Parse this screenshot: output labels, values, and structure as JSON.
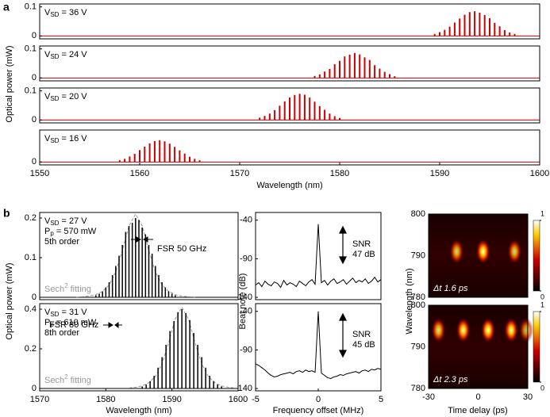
{
  "panel_labels": [
    "a",
    "b"
  ],
  "chart_data": [
    {
      "type": "comb",
      "color": "#cc0000",
      "xlim": [
        1550,
        1600
      ],
      "ylim": [
        -0.01,
        0.11
      ],
      "yticks": [
        0,
        0.1
      ],
      "ylabel": "Optical  power (mW)",
      "annotation": [
        {
          "base": "V",
          "sub": "SD",
          "rest": " = 36 V"
        }
      ],
      "x": [
        1589.5,
        1590,
        1590.5,
        1591,
        1591.5,
        1592,
        1592.5,
        1593,
        1593.5,
        1594,
        1594.5,
        1595,
        1595.5,
        1596,
        1596.5,
        1597,
        1597.5
      ],
      "values": [
        0.007,
        0.013,
        0.021,
        0.032,
        0.046,
        0.06,
        0.073,
        0.082,
        0.085,
        0.08,
        0.072,
        0.061,
        0.045,
        0.033,
        0.02,
        0.012,
        0.007
      ]
    },
    {
      "type": "comb",
      "color": "#cc0000",
      "xlim": [
        1550,
        1600
      ],
      "ylim": [
        -0.01,
        0.11
      ],
      "yticks": [
        0,
        0.1
      ],
      "annotation": [
        {
          "base": "V",
          "sub": "SD",
          "rest": " = 24 V"
        }
      ],
      "x": [
        1577.5,
        1578,
        1578.5,
        1579,
        1579.5,
        1580,
        1580.5,
        1581,
        1581.5,
        1582,
        1582.5,
        1583,
        1583.5,
        1584,
        1584.5,
        1585,
        1585.5
      ],
      "values": [
        0.007,
        0.012,
        0.022,
        0.031,
        0.047,
        0.059,
        0.074,
        0.08,
        0.086,
        0.081,
        0.071,
        0.062,
        0.044,
        0.032,
        0.021,
        0.013,
        0.006
      ]
    },
    {
      "type": "comb",
      "color": "#cc0000",
      "xlim": [
        1550,
        1600
      ],
      "ylim": [
        -0.01,
        0.11
      ],
      "yticks": [
        0,
        0.1
      ],
      "annotation": [
        {
          "base": "V",
          "sub": "SD",
          "rest": " = 20 V"
        }
      ],
      "x": [
        1572,
        1572.5,
        1573,
        1573.5,
        1574,
        1574.5,
        1575,
        1575.5,
        1576,
        1576.5,
        1577,
        1577.5,
        1578,
        1578.5,
        1579,
        1579.5,
        1580
      ],
      "values": [
        0.008,
        0.014,
        0.022,
        0.034,
        0.049,
        0.064,
        0.077,
        0.086,
        0.09,
        0.087,
        0.077,
        0.063,
        0.048,
        0.035,
        0.022,
        0.013,
        0.007
      ]
    },
    {
      "type": "comb",
      "color": "#cc0000",
      "xlim": [
        1550,
        1600
      ],
      "ylim": [
        -0.01,
        0.11
      ],
      "yticks": [
        0
      ],
      "xticks": [
        1550,
        1560,
        1570,
        1580,
        1590,
        1600
      ],
      "xlabel": "Wavelength (nm)",
      "annotation": [
        {
          "base": "V",
          "sub": "SD",
          "rest": " = 16 V"
        }
      ],
      "x": [
        1558,
        1558.5,
        1559,
        1559.5,
        1560,
        1560.5,
        1561,
        1561.5,
        1562,
        1562.5,
        1563,
        1563.5,
        1564,
        1564.5,
        1565,
        1565.5,
        1566
      ],
      "values": [
        0.006,
        0.011,
        0.019,
        0.028,
        0.041,
        0.053,
        0.064,
        0.072,
        0.075,
        0.071,
        0.063,
        0.052,
        0.04,
        0.029,
        0.018,
        0.011,
        0.006
      ]
    },
    {
      "type": "comb",
      "color": "#000000",
      "xlim": [
        1570,
        1600
      ],
      "ylim": [
        -0.006,
        0.214
      ],
      "yticks": [
        0,
        0.1,
        0.2
      ],
      "ylabel": "Optical power (mW)",
      "annotation": [
        {
          "base": "V",
          "sub": "SD",
          "rest": " = 27 V"
        },
        {
          "base": "P",
          "sub": "p",
          "rest": " = 570 mW"
        },
        "5th order"
      ],
      "fsr_label": "FSR 50 GHz",
      "fit_label": {
        "base": "Sech",
        "sup": "2",
        "rest": " fitting"
      },
      "fit_color": "#999999",
      "x": [
        1578.5,
        1579,
        1579.5,
        1580,
        1580.5,
        1581,
        1581.5,
        1582,
        1582.5,
        1583,
        1583.5,
        1584,
        1584.5,
        1585,
        1585.5,
        1586,
        1586.5,
        1587,
        1587.5,
        1588,
        1588.5,
        1589,
        1589.5,
        1590,
        1590.5
      ],
      "values": [
        0.005,
        0.009,
        0.015,
        0.025,
        0.038,
        0.056,
        0.079,
        0.105,
        0.132,
        0.165,
        0.18,
        0.188,
        0.2,
        0.195,
        0.176,
        0.159,
        0.132,
        0.11,
        0.079,
        0.056,
        0.038,
        0.025,
        0.015,
        0.009,
        0.005
      ],
      "fit": {
        "x": [
          1575.5,
          1576.5,
          1577.5,
          1578.5,
          1579.5,
          1580.5,
          1581.5,
          1582.5,
          1583.5,
          1584.5,
          1585.5,
          1586.5,
          1587.5,
          1588.5,
          1589.5,
          1590.5,
          1591.5,
          1592.5,
          1593.5
        ],
        "values": [
          0.0006,
          0.0014,
          0.0031,
          0.0065,
          0.015,
          0.031,
          0.064,
          0.118,
          0.18,
          0.21,
          0.18,
          0.118,
          0.064,
          0.031,
          0.015,
          0.0065,
          0.0031,
          0.0014,
          0.0006
        ]
      }
    },
    {
      "type": "comb",
      "color": "#000000",
      "xlim": [
        1570,
        1600
      ],
      "ylim": [
        -0.012,
        0.428
      ],
      "yticks": [
        0,
        0.2,
        0.4
      ],
      "xticks": [
        1570,
        1580,
        1590,
        1600
      ],
      "xlabel": "Wavelength (nm)",
      "annotation": [
        {
          "base": "V",
          "sub": "SD",
          "rest": " = 31 V"
        },
        {
          "base": "P",
          "sub": "p",
          "rest": " = 610 mW"
        },
        "8th order"
      ],
      "fsr_label": "FSR 80 GHz",
      "fit_label": {
        "base": "Sech",
        "sup": "2",
        "rest": " fitting"
      },
      "fit_color": "#999999",
      "x": [
        1585.5,
        1586.1,
        1586.7,
        1587.3,
        1587.9,
        1588.5,
        1589.1,
        1589.7,
        1590.3,
        1590.9,
        1591.5,
        1592.1,
        1592.7,
        1593.3,
        1593.9,
        1594.5,
        1595.1,
        1595.7,
        1596.3,
        1596.9,
        1597.5
      ],
      "values": [
        0.01,
        0.02,
        0.037,
        0.064,
        0.105,
        0.158,
        0.22,
        0.29,
        0.34,
        0.385,
        0.4,
        0.38,
        0.345,
        0.28,
        0.22,
        0.158,
        0.105,
        0.064,
        0.037,
        0.02,
        0.01
      ],
      "fit": {
        "x": [
          1583.5,
          1584.5,
          1585.5,
          1586.5,
          1587.5,
          1588.5,
          1589.5,
          1590.5,
          1591.5,
          1592.5,
          1593.5,
          1594.5,
          1595.5,
          1596.5,
          1597.5,
          1598.5,
          1599.5
        ],
        "values": [
          0.0027,
          0.0061,
          0.0127,
          0.029,
          0.06,
          0.125,
          0.23,
          0.351,
          0.41,
          0.351,
          0.23,
          0.125,
          0.06,
          0.029,
          0.0127,
          0.0061,
          0.0027
        ]
      }
    },
    {
      "type": "line",
      "color": "#000000",
      "xlim": [
        -5,
        5
      ],
      "ylim": [
        -143,
        -30
      ],
      "yticks": [
        -40,
        -90,
        -140
      ],
      "ylabel": "Beat note (dB)",
      "snr_label": [
        "SNR",
        "47 dB"
      ],
      "x": [
        -5,
        -4.75,
        -4.5,
        -4.25,
        -4,
        -3.75,
        -3.5,
        -3.25,
        -3,
        -2.75,
        -2.5,
        -2.25,
        -2,
        -1.75,
        -1.5,
        -1.25,
        -1,
        -0.75,
        -0.5,
        -0.25,
        0,
        0.25,
        0.5,
        0.75,
        1,
        1.25,
        1.5,
        1.75,
        2,
        2.25,
        2.5,
        2.75,
        3,
        3.25,
        3.5,
        3.75,
        4,
        4.25,
        4.5,
        4.75,
        5
      ],
      "values": [
        -124,
        -121,
        -126,
        -119,
        -123,
        -125,
        -120,
        -122,
        -127,
        -118,
        -124,
        -121,
        -123,
        -126,
        -119,
        -122,
        -125,
        -120,
        -117,
        -123,
        -45,
        -121,
        -118,
        -124,
        -119,
        -116,
        -122,
        -120,
        -117,
        -123,
        -119,
        -115,
        -121,
        -118,
        -120,
        -116,
        -122,
        -119,
        -114,
        -120,
        -117
      ]
    },
    {
      "type": "line",
      "color": "#000000",
      "xlim": [
        -5,
        5
      ],
      "ylim": [
        -143,
        -30
      ],
      "yticks": [
        -40,
        -90,
        -140
      ],
      "xticks": [
        -5,
        0,
        5
      ],
      "xlabel": "Frequency offset (MHz)",
      "snr_label": [
        "SNR",
        "45 dB"
      ],
      "x": [
        -5,
        -4.75,
        -4.5,
        -4.25,
        -4,
        -3.75,
        -3.5,
        -3.25,
        -3,
        -2.75,
        -2.5,
        -2.25,
        -2,
        -1.75,
        -1.5,
        -1.25,
        -1,
        -0.75,
        -0.5,
        -0.25,
        0,
        0.25,
        0.5,
        0.75,
        1,
        1.25,
        1.5,
        1.75,
        2,
        2.25,
        2.5,
        2.75,
        3,
        3.25,
        3.5,
        3.75,
        4,
        4.25,
        4.5,
        4.75,
        5
      ],
      "values": [
        -108,
        -110,
        -113,
        -116,
        -120,
        -123,
        -125,
        -124,
        -122,
        -121,
        -120,
        -119,
        -121,
        -118,
        -117,
        -119,
        -116,
        -118,
        -117,
        -119,
        -40,
        -120,
        -123,
        -126,
        -127,
        -125,
        -124,
        -122,
        -123,
        -121,
        -120,
        -119,
        -118,
        -120,
        -117,
        -116,
        -118,
        -115,
        -116,
        -114,
        -115
      ]
    },
    {
      "type": "heatmap",
      "xlim": [
        -30,
        30
      ],
      "ylim": [
        780,
        800
      ],
      "yticks": [
        780,
        790,
        800
      ],
      "ylabel": "Wavelength (nm)",
      "clim": [
        0,
        1
      ],
      "cticks": [
        0,
        1
      ],
      "label": "Δt 1.6 ps",
      "x": [
        -13,
        3,
        22
      ],
      "y": [
        791,
        791,
        791
      ],
      "values": [
        0.8,
        1,
        0.8
      ]
    },
    {
      "type": "heatmap",
      "xlim": [
        -30,
        30
      ],
      "ylim": [
        780,
        800
      ],
      "yticks": [
        780,
        790,
        800
      ],
      "xticks": [
        -30,
        0,
        30
      ],
      "xlabel": "Time delay (ps)",
      "clim": [
        0,
        1
      ],
      "cticks": [
        0,
        1
      ],
      "label": "Δt 2.3 ps",
      "x": [
        -24,
        -9,
        6,
        20,
        29
      ],
      "y": [
        794,
        794,
        794,
        794,
        794
      ],
      "values": [
        0.85,
        0.95,
        1,
        0.95,
        0.7
      ]
    }
  ]
}
